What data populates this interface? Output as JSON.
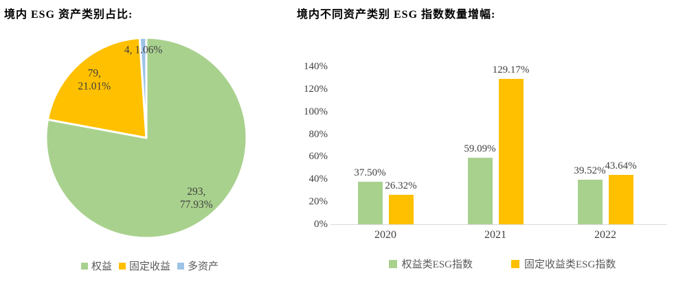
{
  "colors": {
    "equity": "#A9D18E",
    "fixed_income": "#FFC000",
    "multi_asset": "#9DC3E6",
    "data_label_text": "#404040",
    "axis_label_text": "#404040",
    "legend_text": "#595959",
    "axis_line": "#D9D9D9",
    "title_text": "#000000",
    "background": "#FFFFFF",
    "slice_border": "#FFFFFF"
  },
  "left_chart": {
    "title": "境内 ESG 资产类别占比:",
    "legend": [
      {
        "key": "equity",
        "label": "权益",
        "color": "#A9D18E"
      },
      {
        "key": "fixed-income",
        "label": "固定收益",
        "color": "#FFC000"
      },
      {
        "key": "multi-asset",
        "label": "多资产",
        "color": "#9DC3E6"
      }
    ]
  },
  "right_chart": {
    "title": "境内不同资产类别 ESG 指数数量增幅:",
    "legend": [
      {
        "key": "equity-esg-index",
        "label": "权益类ESG指数",
        "color": "#A9D18E"
      },
      {
        "key": "fixed-income-esg-index",
        "label": "固定收益类ESG指数",
        "color": "#FFC000"
      }
    ]
  },
  "chart_data": [
    {
      "type": "pie",
      "title": "境内 ESG 资产类别占比:",
      "labels": [
        "权益",
        "固定收益",
        "多资产"
      ],
      "keys": [
        "equity",
        "fixed-income",
        "multi-asset"
      ],
      "values": [
        293,
        79,
        4
      ],
      "percent_labels": [
        "77.93%",
        "21.01%",
        "1.06%"
      ],
      "data_label_lines": [
        [
          "293,",
          "77.93%"
        ],
        [
          "79,",
          "21.01%"
        ],
        [
          "4, 1.06%"
        ]
      ],
      "colors": [
        "#A9D18E",
        "#FFC000",
        "#9DC3E6"
      ],
      "start_angle": "top",
      "direction": "clockwise",
      "legend_position": "bottom"
    },
    {
      "type": "bar",
      "title": "境内不同资产类别 ESG 指数数量增幅:",
      "categories": [
        "2020",
        "2021",
        "2022"
      ],
      "series": [
        {
          "key": "equity-esg-index",
          "name": "权益类ESG指数",
          "color": "#A9D18E",
          "values": [
            37.5,
            59.09,
            39.52
          ],
          "value_labels": [
            "37.50%",
            "59.09%",
            "39.52%"
          ]
        },
        {
          "key": "fixed-income-esg-index",
          "name": "固定收益类ESG指数",
          "color": "#FFC000",
          "values": [
            26.32,
            129.17,
            43.64
          ],
          "value_labels": [
            "26.32%",
            "129.17%",
            "43.64%"
          ]
        }
      ],
      "xlabel": "",
      "ylabel": "",
      "ylim": [
        0,
        140
      ],
      "ytick_step": 20,
      "ytick_labels": [
        "0%",
        "20%",
        "40%",
        "60%",
        "80%",
        "100%",
        "120%",
        "140%"
      ],
      "grid": false,
      "legend_position": "bottom"
    }
  ]
}
